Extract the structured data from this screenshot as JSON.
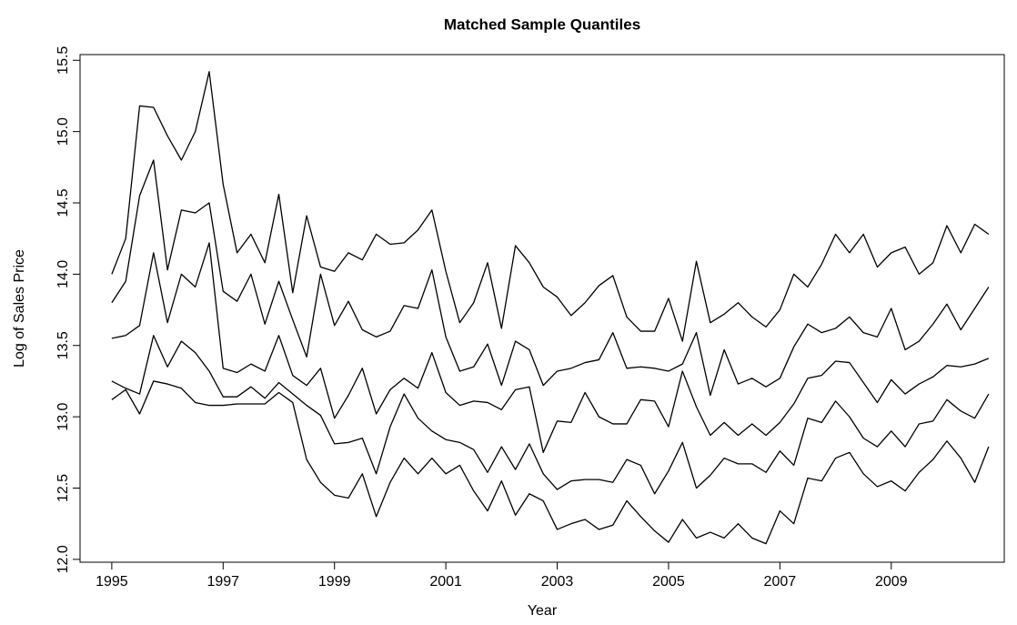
{
  "chart_data": {
    "type": "line",
    "title": "Matched Sample Quantiles",
    "x_label": "Year",
    "y_label": "Log of Sales Price",
    "x": [
      1995,
      1995.25,
      1995.5,
      1995.75,
      1996,
      1996.25,
      1996.5,
      1996.75,
      1997,
      1997.25,
      1997.5,
      1997.75,
      1998,
      1998.25,
      1998.5,
      1998.75,
      1999,
      1999.25,
      1999.5,
      1999.75,
      2000,
      2000.25,
      2000.5,
      2000.75,
      2001,
      2001.25,
      2001.5,
      2001.75,
      2002,
      2002.25,
      2002.5,
      2002.75,
      2003,
      2003.25,
      2003.5,
      2003.75,
      2004,
      2004.25,
      2004.5,
      2004.75,
      2005,
      2005.25,
      2005.5,
      2005.75,
      2006,
      2006.25,
      2006.5,
      2006.75,
      2007,
      2007.25,
      2007.5,
      2007.75,
      2008,
      2008.25,
      2008.5,
      2008.75,
      2009,
      2009.25,
      2009.5,
      2009.75,
      2010,
      2010.25,
      2010.5,
      2010.75
    ],
    "series": [
      {
        "color": "#000000",
        "values": [
          14.0,
          14.25,
          15.18,
          15.17,
          14.97,
          14.8,
          15.0,
          15.42,
          14.63,
          14.15,
          14.28,
          14.08,
          14.56,
          13.87,
          14.41,
          14.05,
          14.02,
          14.15,
          14.1,
          14.28,
          14.21,
          14.22,
          14.31,
          14.45,
          14.02,
          13.66,
          13.8,
          14.08,
          13.62,
          14.2,
          14.08,
          13.91,
          13.84,
          13.71,
          13.8,
          13.92,
          13.99,
          13.7,
          13.6,
          13.6,
          13.83,
          13.53,
          14.09,
          13.66,
          13.72,
          13.8,
          13.7,
          13.63,
          13.75,
          14.0,
          13.91,
          14.07,
          14.28,
          14.15,
          14.28,
          14.05,
          14.15,
          14.19,
          14.0,
          14.08,
          14.34,
          14.15,
          14.35,
          14.28
        ]
      },
      {
        "color": "#000000",
        "values": [
          13.8,
          13.95,
          14.55,
          14.8,
          14.03,
          14.45,
          14.43,
          14.5,
          13.88,
          13.81,
          14.0,
          13.65,
          13.95,
          13.68,
          13.42,
          14.0,
          13.64,
          13.81,
          13.61,
          13.56,
          13.6,
          13.78,
          13.76,
          14.03,
          13.56,
          13.32,
          13.35,
          13.51,
          13.22,
          13.53,
          13.47,
          13.22,
          13.32,
          13.34,
          13.38,
          13.4,
          13.59,
          13.34,
          13.35,
          13.34,
          13.32,
          13.37,
          13.59,
          13.15,
          13.47,
          13.23,
          13.27,
          13.21,
          13.27,
          13.49,
          13.65,
          13.59,
          13.62,
          13.7,
          13.59,
          13.56,
          13.76,
          13.47,
          13.53,
          13.65,
          13.79,
          13.61,
          13.76,
          13.91
        ]
      },
      {
        "color": "#000000",
        "values": [
          13.55,
          13.57,
          13.64,
          14.15,
          13.66,
          14.0,
          13.91,
          14.22,
          13.34,
          13.31,
          13.37,
          13.32,
          13.57,
          13.29,
          13.22,
          13.34,
          12.99,
          13.15,
          13.34,
          13.02,
          13.19,
          13.27,
          13.2,
          13.45,
          13.17,
          13.08,
          13.11,
          13.1,
          13.05,
          13.19,
          13.21,
          12.75,
          12.97,
          12.96,
          13.17,
          13.0,
          12.95,
          12.95,
          13.12,
          13.11,
          12.93,
          13.32,
          13.07,
          12.87,
          12.96,
          12.87,
          12.95,
          12.87,
          12.96,
          13.09,
          13.27,
          13.29,
          13.39,
          13.38,
          13.24,
          13.1,
          13.26,
          13.16,
          13.23,
          13.28,
          13.36,
          13.35,
          13.37,
          13.41
        ]
      },
      {
        "color": "#000000",
        "values": [
          13.25,
          13.2,
          13.16,
          13.57,
          13.35,
          13.53,
          13.45,
          13.32,
          13.14,
          13.14,
          13.21,
          13.13,
          13.24,
          13.16,
          13.08,
          13.01,
          12.81,
          12.82,
          12.85,
          12.6,
          12.93,
          13.16,
          12.99,
          12.9,
          12.84,
          12.82,
          12.77,
          12.61,
          12.79,
          12.63,
          12.81,
          12.6,
          12.49,
          12.55,
          12.56,
          12.56,
          12.54,
          12.7,
          12.66,
          12.46,
          12.62,
          12.82,
          12.5,
          12.59,
          12.71,
          12.67,
          12.67,
          12.61,
          12.76,
          12.66,
          12.99,
          12.96,
          13.11,
          13.0,
          12.85,
          12.79,
          12.9,
          12.79,
          12.95,
          12.97,
          13.12,
          13.04,
          12.99,
          13.16
        ]
      },
      {
        "color": "#000000",
        "values": [
          13.12,
          13.19,
          13.02,
          13.25,
          13.23,
          13.2,
          13.1,
          13.08,
          13.08,
          13.09,
          13.09,
          13.09,
          13.17,
          13.1,
          12.7,
          12.54,
          12.45,
          12.43,
          12.6,
          12.3,
          12.54,
          12.71,
          12.6,
          12.71,
          12.6,
          12.66,
          12.48,
          12.34,
          12.55,
          12.31,
          12.46,
          12.41,
          12.21,
          12.25,
          12.28,
          12.21,
          12.24,
          12.41,
          12.3,
          12.2,
          12.12,
          12.28,
          12.15,
          12.19,
          12.15,
          12.25,
          12.15,
          12.11,
          12.34,
          12.25,
          12.57,
          12.55,
          12.71,
          12.75,
          12.6,
          12.51,
          12.55,
          12.48,
          12.61,
          12.7,
          12.83,
          12.71,
          12.54,
          12.79
        ]
      }
    ],
    "xlim": [
      1994.43,
      2011.03
    ],
    "xticks": [
      1995,
      1997,
      1999,
      2001,
      2003,
      2005,
      2007,
      2009
    ],
    "ylim": [
      11.98,
      15.54
    ],
    "yticks": [
      {
        "value": 12,
        "label": "12.0"
      },
      {
        "value": 12.5,
        "label": "12.5"
      },
      {
        "value": 13,
        "label": "13.0"
      },
      {
        "value": 13.5,
        "label": "13.5"
      },
      {
        "value": 14,
        "label": "14.0"
      },
      {
        "value": 14.5,
        "label": "14.5"
      },
      {
        "value": 15,
        "label": "15.0"
      },
      {
        "value": 15.5,
        "label": "15.5"
      }
    ],
    "grid": false
  }
}
